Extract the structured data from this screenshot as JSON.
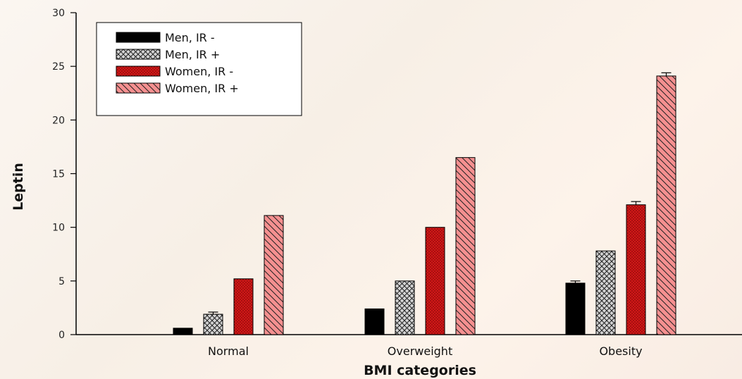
{
  "chart_data": {
    "type": "bar",
    "categories": [
      "Normal",
      "Overweight",
      "Obesity"
    ],
    "series": [
      {
        "name": "Men, IR -",
        "values": [
          0.6,
          2.4,
          4.8
        ],
        "errors": [
          0.0,
          0.0,
          0.2
        ],
        "color": "#000000",
        "pattern": "solid"
      },
      {
        "name": "Men, IR +",
        "values": [
          1.9,
          5.0,
          7.8
        ],
        "errors": [
          0.2,
          0.0,
          0.0
        ],
        "color": "#c8c8c8",
        "pattern": "crosshatch"
      },
      {
        "name": "Women, IR -",
        "values": [
          5.2,
          10.0,
          12.1
        ],
        "errors": [
          0.0,
          0.0,
          0.3
        ],
        "color": "#cc1111",
        "pattern": "dots"
      },
      {
        "name": "Women, IR +",
        "values": [
          11.1,
          16.5,
          24.1
        ],
        "errors": [
          0.0,
          0.0,
          0.3
        ],
        "color": "#f28b8b",
        "pattern": "diagonal"
      }
    ],
    "title": "",
    "xlabel": "BMI categories",
    "ylabel": "Leptin",
    "ylim": [
      0,
      30
    ],
    "yticks": [
      0,
      5,
      10,
      15,
      20,
      25,
      30
    ],
    "grid": false,
    "legend_position": "top-left"
  }
}
